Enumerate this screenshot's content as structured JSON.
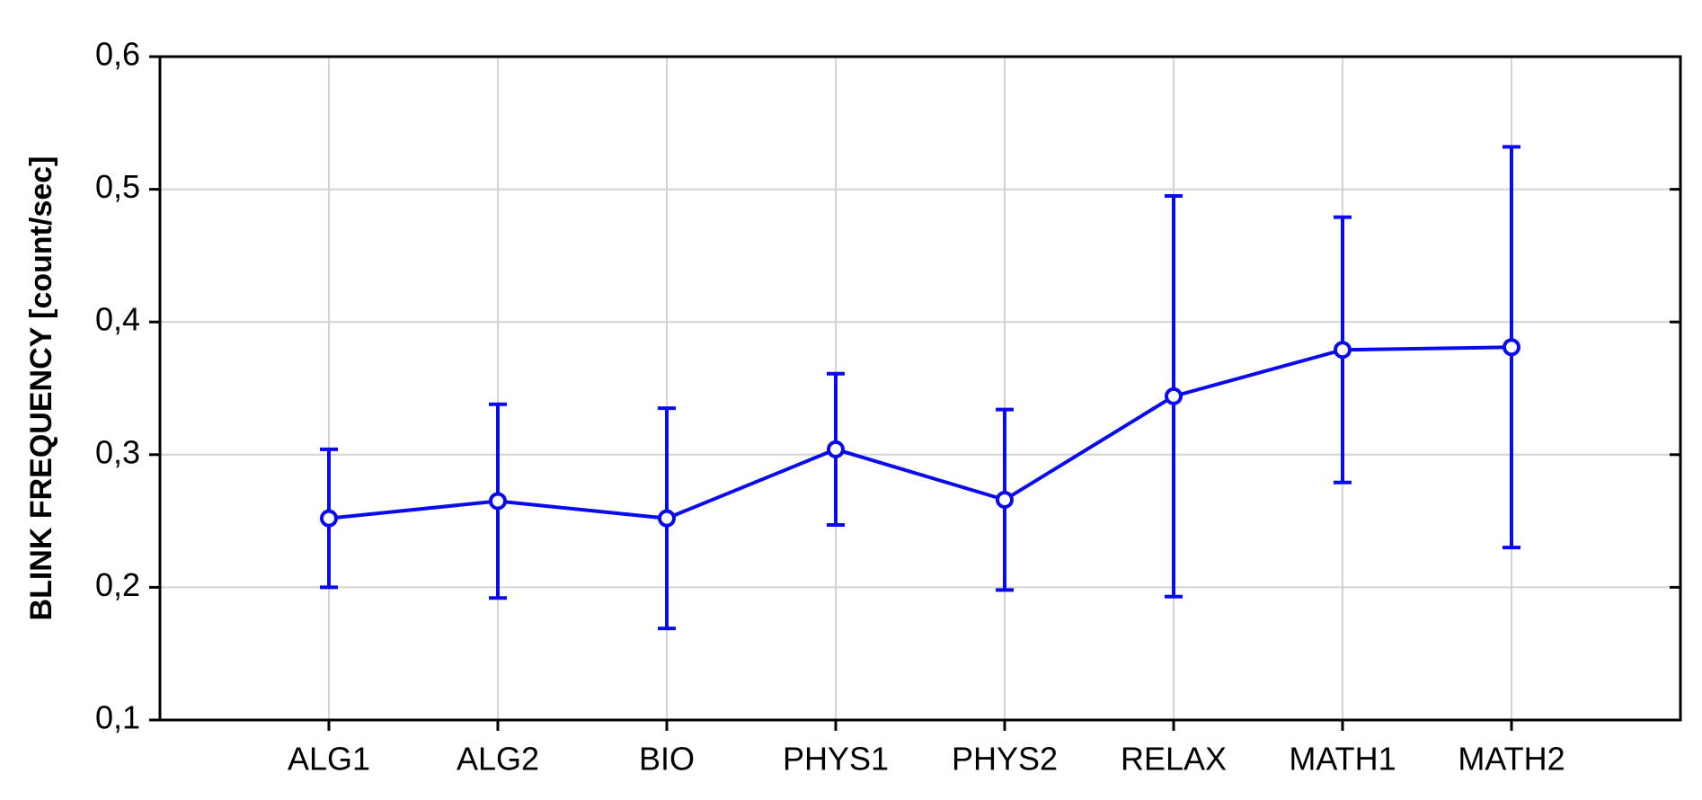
{
  "chart_data": {
    "type": "errorbar_line",
    "ylabel": "BLINK FREQUENCY [count/sec]",
    "categories": [
      "ALG1",
      "ALG2",
      "BIO",
      "PHYS1",
      "PHYS2",
      "RELAX",
      "MATH1",
      "MATH2"
    ],
    "values": [
      0.252,
      0.265,
      0.252,
      0.304,
      0.266,
      0.344,
      0.379,
      0.381
    ],
    "errors": [
      0.052,
      0.073,
      0.083,
      0.057,
      0.068,
      0.151,
      0.1,
      0.151
    ],
    "color": "#0a0aee",
    "ylim": [
      0.1,
      0.6
    ],
    "yticks": [
      {
        "value": 0.1,
        "label": "0,1"
      },
      {
        "value": 0.2,
        "label": "0,2"
      },
      {
        "value": 0.3,
        "label": "0,3"
      },
      {
        "value": 0.4,
        "label": "0,4"
      },
      {
        "value": 0.5,
        "label": "0,5"
      },
      {
        "value": 0.6,
        "label": "0,6"
      }
    ],
    "grid": true
  }
}
